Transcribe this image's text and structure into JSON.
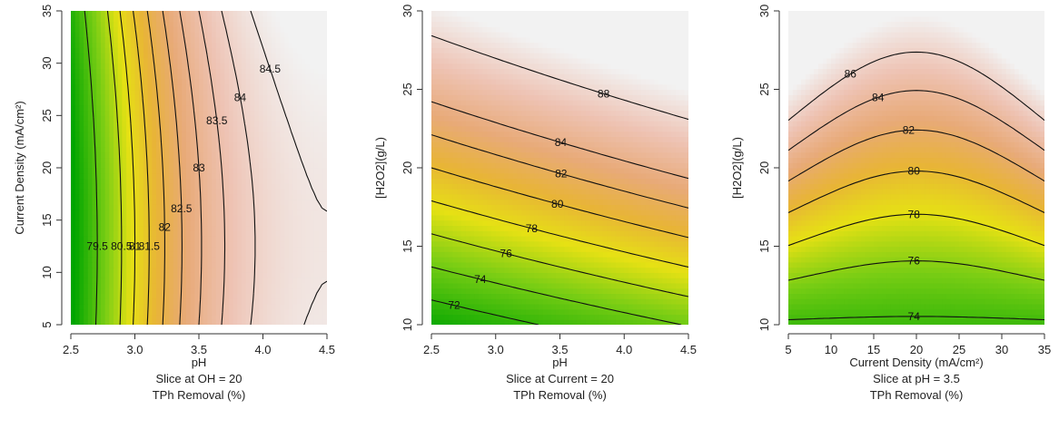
{
  "chart_data": [
    {
      "type": "contour",
      "xlabel": "pH",
      "ylabel": "Current Density (mA/cm²)",
      "slice_label": "Slice at OH = 20",
      "response_label": "TPh Removal (%)",
      "xlim": [
        2.5,
        4.5
      ],
      "ylim": [
        5,
        35
      ],
      "x_ticks": [
        "2.5",
        "3.0",
        "3.5",
        "4.0",
        "4.5"
      ],
      "y_ticks": [
        "5",
        "10",
        "15",
        "20",
        "25",
        "30",
        "35"
      ],
      "z_range": [
        78.5,
        84.8
      ],
      "contour_levels": [
        "79.5",
        "80.5",
        "81",
        "81.5",
        "82",
        "82.5",
        "83",
        "83.5",
        "84",
        "84.5"
      ]
    },
    {
      "type": "contour",
      "xlabel": "pH",
      "ylabel": "[H2O2](g/L)",
      "slice_label": "Slice at Current = 20",
      "response_label": "TPh Removal (%)",
      "xlim": [
        2.5,
        4.5
      ],
      "ylim": [
        10,
        30
      ],
      "x_ticks": [
        "2.5",
        "3.0",
        "3.5",
        "4.0",
        "4.5"
      ],
      "y_ticks": [
        "10",
        "15",
        "20",
        "25",
        "30"
      ],
      "z_range": [
        70,
        90
      ],
      "contour_levels": [
        "72",
        "74",
        "76",
        "78",
        "80",
        "82",
        "84",
        "88"
      ]
    },
    {
      "type": "contour",
      "xlabel": "Current Density (mA/cm²)",
      "ylabel": "[H2O2](g/L)",
      "slice_label": "Slice at pH = 3.5",
      "response_label": "TPh Removal (%)",
      "xlim": [
        5,
        35
      ],
      "ylim": [
        10,
        30
      ],
      "x_ticks": [
        "5",
        "10",
        "15",
        "20",
        "25",
        "30",
        "35"
      ],
      "y_ticks": [
        "10",
        "15",
        "20",
        "25",
        "30"
      ],
      "z_range": [
        72,
        88
      ],
      "contour_levels": [
        "74",
        "76",
        "78",
        "80",
        "82",
        "84",
        "86"
      ]
    }
  ]
}
